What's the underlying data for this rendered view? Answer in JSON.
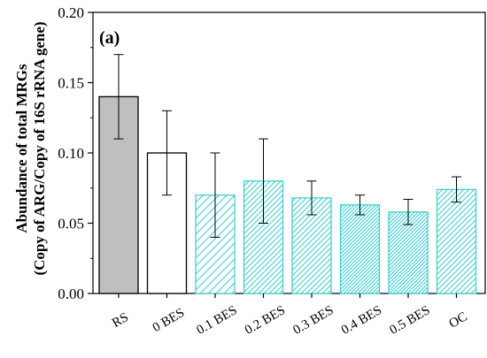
{
  "chart_data": {
    "type": "bar",
    "panel_label": "(a)",
    "ylabel_line1": "Abundance of total MRGs",
    "ylabel_line2": "(Copy of ARG/Copy of 16S rRNA gene)",
    "ylim": [
      0,
      0.2
    ],
    "yticks": [
      "0.00",
      "0.05",
      "0.10",
      "0.15",
      "0.20"
    ],
    "categories": [
      "RS",
      "0 BES",
      "0.1 BES",
      "0.2 BES",
      "0.3 BES",
      "0.4 BES",
      "0.5 BES",
      "OC"
    ],
    "values": [
      0.14,
      0.1,
      0.07,
      0.08,
      0.068,
      0.063,
      0.058,
      0.074
    ],
    "error_low": [
      0.11,
      0.07,
      0.04,
      0.05,
      0.056,
      0.056,
      0.049,
      0.065
    ],
    "error_high": [
      0.17,
      0.13,
      0.1,
      0.11,
      0.08,
      0.07,
      0.067,
      0.083
    ],
    "bar_styles": [
      {
        "fill": "#bfbfbf",
        "pattern": "none"
      },
      {
        "fill": "#ffffff",
        "pattern": "none"
      },
      {
        "fill": "#ffffff",
        "pattern": "sparse-diagonal"
      },
      {
        "fill": "#ffffff",
        "pattern": "diagonal"
      },
      {
        "fill": "#ffffff",
        "pattern": "diagonal"
      },
      {
        "fill": "#ffffff",
        "pattern": "dense-diagonal"
      },
      {
        "fill": "#ffffff",
        "pattern": "dense-diagonal"
      },
      {
        "fill": "#ffffff",
        "pattern": "diagonal"
      }
    ],
    "hatch_color": "#40d0d0",
    "grid": false,
    "legend": "none"
  }
}
